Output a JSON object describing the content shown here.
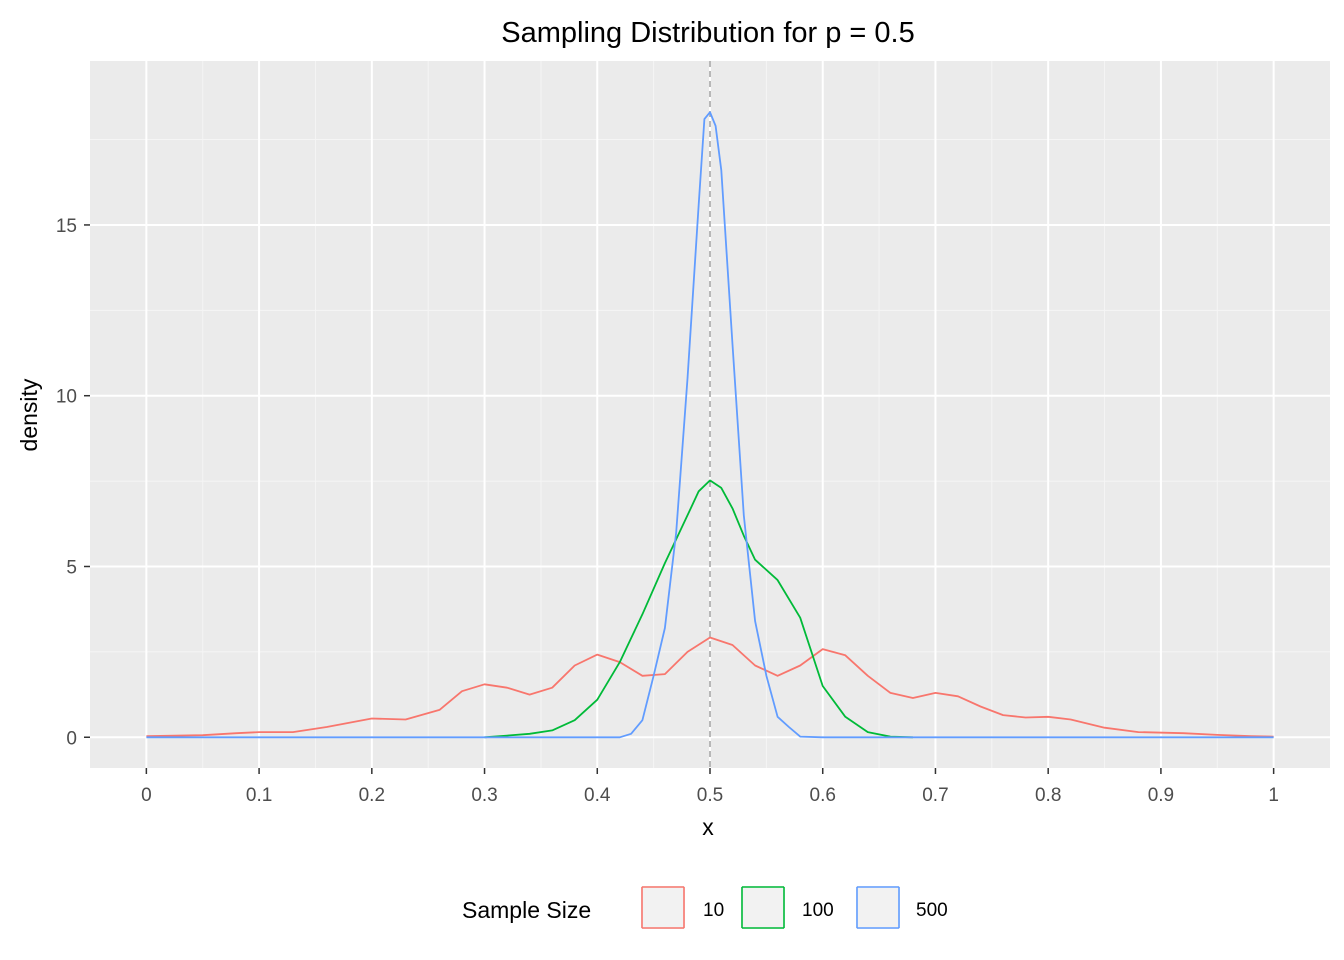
{
  "chart_data": {
    "type": "line",
    "title": "Sampling Distribution for p = 0.5",
    "xlabel": "x",
    "ylabel": "density",
    "xlim": [
      -0.05,
      1.05
    ],
    "ylim": [
      -0.9,
      19.8
    ],
    "x_ticks": [
      "0",
      "0.1",
      "0.2",
      "0.3",
      "0.4",
      "0.5",
      "0.6",
      "0.7",
      "0.8",
      "0.9",
      "1"
    ],
    "y_ticks": [
      "0",
      "5",
      "10",
      "15"
    ],
    "grid": true,
    "reference_line": {
      "x": 0.5,
      "style": "dashed",
      "color": "#a6a6a6"
    },
    "legend": {
      "title": "Sample Size",
      "position": "bottom",
      "entries": [
        "10",
        "100",
        "500"
      ]
    },
    "series": [
      {
        "name": "10",
        "color": "#F8766D",
        "points": [
          [
            0.0,
            0.03
          ],
          [
            0.05,
            0.06
          ],
          [
            0.08,
            0.12
          ],
          [
            0.1,
            0.15
          ],
          [
            0.13,
            0.15
          ],
          [
            0.16,
            0.3
          ],
          [
            0.2,
            0.55
          ],
          [
            0.23,
            0.52
          ],
          [
            0.26,
            0.8
          ],
          [
            0.28,
            1.35
          ],
          [
            0.3,
            1.55
          ],
          [
            0.32,
            1.45
          ],
          [
            0.34,
            1.25
          ],
          [
            0.36,
            1.45
          ],
          [
            0.38,
            2.1
          ],
          [
            0.4,
            2.42
          ],
          [
            0.42,
            2.2
          ],
          [
            0.44,
            1.8
          ],
          [
            0.46,
            1.85
          ],
          [
            0.48,
            2.5
          ],
          [
            0.5,
            2.92
          ],
          [
            0.52,
            2.7
          ],
          [
            0.54,
            2.1
          ],
          [
            0.56,
            1.8
          ],
          [
            0.58,
            2.1
          ],
          [
            0.6,
            2.58
          ],
          [
            0.62,
            2.4
          ],
          [
            0.64,
            1.8
          ],
          [
            0.66,
            1.3
          ],
          [
            0.68,
            1.15
          ],
          [
            0.7,
            1.3
          ],
          [
            0.72,
            1.2
          ],
          [
            0.74,
            0.9
          ],
          [
            0.76,
            0.65
          ],
          [
            0.78,
            0.58
          ],
          [
            0.8,
            0.6
          ],
          [
            0.82,
            0.52
          ],
          [
            0.85,
            0.28
          ],
          [
            0.88,
            0.15
          ],
          [
            0.92,
            0.12
          ],
          [
            0.95,
            0.07
          ],
          [
            0.98,
            0.03
          ],
          [
            1.0,
            0.02
          ]
        ]
      },
      {
        "name": "100",
        "color": "#00BA38",
        "points": [
          [
            0.3,
            0.0
          ],
          [
            0.32,
            0.05
          ],
          [
            0.34,
            0.1
          ],
          [
            0.36,
            0.2
          ],
          [
            0.38,
            0.5
          ],
          [
            0.4,
            1.1
          ],
          [
            0.42,
            2.2
          ],
          [
            0.44,
            3.6
          ],
          [
            0.46,
            5.1
          ],
          [
            0.47,
            5.8
          ],
          [
            0.48,
            6.5
          ],
          [
            0.49,
            7.2
          ],
          [
            0.5,
            7.52
          ],
          [
            0.51,
            7.3
          ],
          [
            0.52,
            6.7
          ],
          [
            0.53,
            5.9
          ],
          [
            0.54,
            5.2
          ],
          [
            0.56,
            4.6
          ],
          [
            0.58,
            3.5
          ],
          [
            0.6,
            1.5
          ],
          [
            0.62,
            0.6
          ],
          [
            0.64,
            0.15
          ],
          [
            0.66,
            0.02
          ],
          [
            0.68,
            0.0
          ]
        ]
      },
      {
        "name": "500",
        "color": "#619CFF",
        "points": [
          [
            0.0,
            0.0
          ],
          [
            0.42,
            0.0
          ],
          [
            0.43,
            0.1
          ],
          [
            0.44,
            0.5
          ],
          [
            0.45,
            1.8
          ],
          [
            0.46,
            3.2
          ],
          [
            0.47,
            6.0
          ],
          [
            0.48,
            10.5
          ],
          [
            0.49,
            15.6
          ],
          [
            0.495,
            18.1
          ],
          [
            0.5,
            18.3
          ],
          [
            0.505,
            17.9
          ],
          [
            0.51,
            16.6
          ],
          [
            0.52,
            11.5
          ],
          [
            0.53,
            6.5
          ],
          [
            0.54,
            3.4
          ],
          [
            0.55,
            1.8
          ],
          [
            0.56,
            0.6
          ],
          [
            0.57,
            0.3
          ],
          [
            0.58,
            0.02
          ],
          [
            0.6,
            0.0
          ],
          [
            1.0,
            0.0
          ]
        ]
      }
    ]
  }
}
